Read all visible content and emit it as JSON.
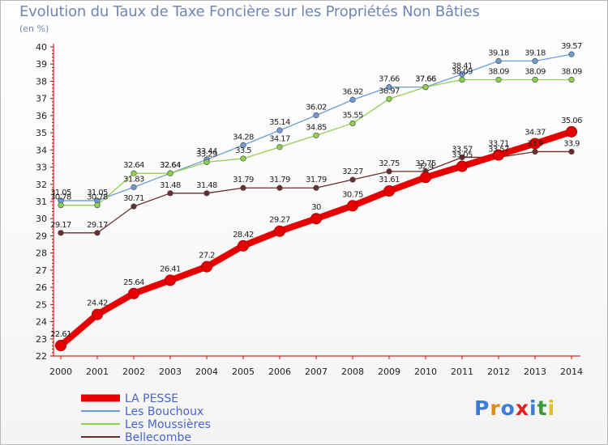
{
  "header": {
    "title": "Evolution du Taux de Taxe Foncière sur les Propriétés Non Bâties",
    "unit": "(en %)"
  },
  "chart_data": {
    "type": "line",
    "title": "Evolution du Taux de Taxe Foncière sur les Propriétés Non Bâties",
    "ylabel": "(en %)",
    "xlabel": "",
    "ylim": [
      22,
      40
    ],
    "grid": false,
    "legend_position": "bottom-left",
    "x": [
      "2000",
      "2001",
      "2002",
      "2003",
      "2004",
      "2005",
      "2006",
      "2007",
      "2008",
      "2009",
      "2010",
      "2011",
      "2012",
      "2013",
      "2014"
    ],
    "series": [
      {
        "name": "LA PESSE",
        "color": "#e60000",
        "values": [
          22.61,
          24.42,
          25.64,
          26.41,
          27.2,
          28.42,
          29.27,
          30,
          30.75,
          31.61,
          32.4,
          33.05,
          33.71,
          34.37,
          35.06
        ],
        "labels": [
          "22.61",
          "24.42",
          "25.64",
          "26.41",
          "27.2",
          "28.42",
          "29.27",
          "30",
          "30.75",
          "31.61",
          "32.4",
          "33.05",
          "33.71",
          "34.37",
          "35.06"
        ]
      },
      {
        "name": "Les Bouchoux",
        "color": "#6c9bd6",
        "values": [
          31.05,
          31.05,
          31.83,
          32.64,
          33.44,
          34.28,
          35.14,
          36.02,
          36.92,
          37.66,
          37.66,
          38.41,
          39.18,
          39.18,
          39.57
        ],
        "labels": [
          "31.05",
          "31.05",
          "31.83",
          "32.64",
          "33.44",
          "34.28",
          "35.14",
          "36.02",
          "36.92",
          "37.66",
          "37.66",
          "38.41",
          "39.18",
          "39.18",
          "39.57"
        ]
      },
      {
        "name": "Les Moussières",
        "color": "#8fd14f",
        "values": [
          30.78,
          30.78,
          32.64,
          32.64,
          33.29,
          33.5,
          34.17,
          34.85,
          35.55,
          36.97,
          37.66,
          38.09,
          38.09,
          38.09,
          38.09
        ],
        "labels": [
          "30.78",
          "30.78",
          "32.64",
          "32.64",
          "33.29",
          "33.5",
          "34.17",
          "34.85",
          "35.55",
          "36.97",
          "37.66",
          "38.09",
          "38.09",
          "38.09",
          "38.09"
        ]
      },
      {
        "name": "Bellecombe",
        "color": "#6b2d2d",
        "values": [
          29.17,
          29.17,
          30.71,
          31.48,
          31.48,
          31.79,
          31.79,
          31.79,
          32.27,
          32.75,
          32.75,
          33.57,
          33.57,
          33.9,
          33.9
        ],
        "labels": [
          "29.17",
          "29.17",
          "30.71",
          "31.48",
          "31.48",
          "31.79",
          "31.79",
          "31.79",
          "32.27",
          "32.75",
          "32.75",
          "33.57",
          "33.57",
          "33.9",
          "33.9"
        ]
      }
    ],
    "yticks": [
      "22",
      "23",
      "24",
      "25",
      "26",
      "27",
      "28",
      "29",
      "30",
      "31",
      "32",
      "33",
      "34",
      "35",
      "36",
      "37",
      "38",
      "39",
      "40"
    ]
  },
  "brand": {
    "letters": [
      "P",
      "r",
      "o",
      "x",
      "i",
      "t",
      "i"
    ],
    "colors": [
      "#3b7dd8",
      "#e08a1e",
      "#3b7dd8",
      "#e02020",
      "#3b7dd8",
      "#3b9a3b",
      "#e0c020"
    ]
  }
}
